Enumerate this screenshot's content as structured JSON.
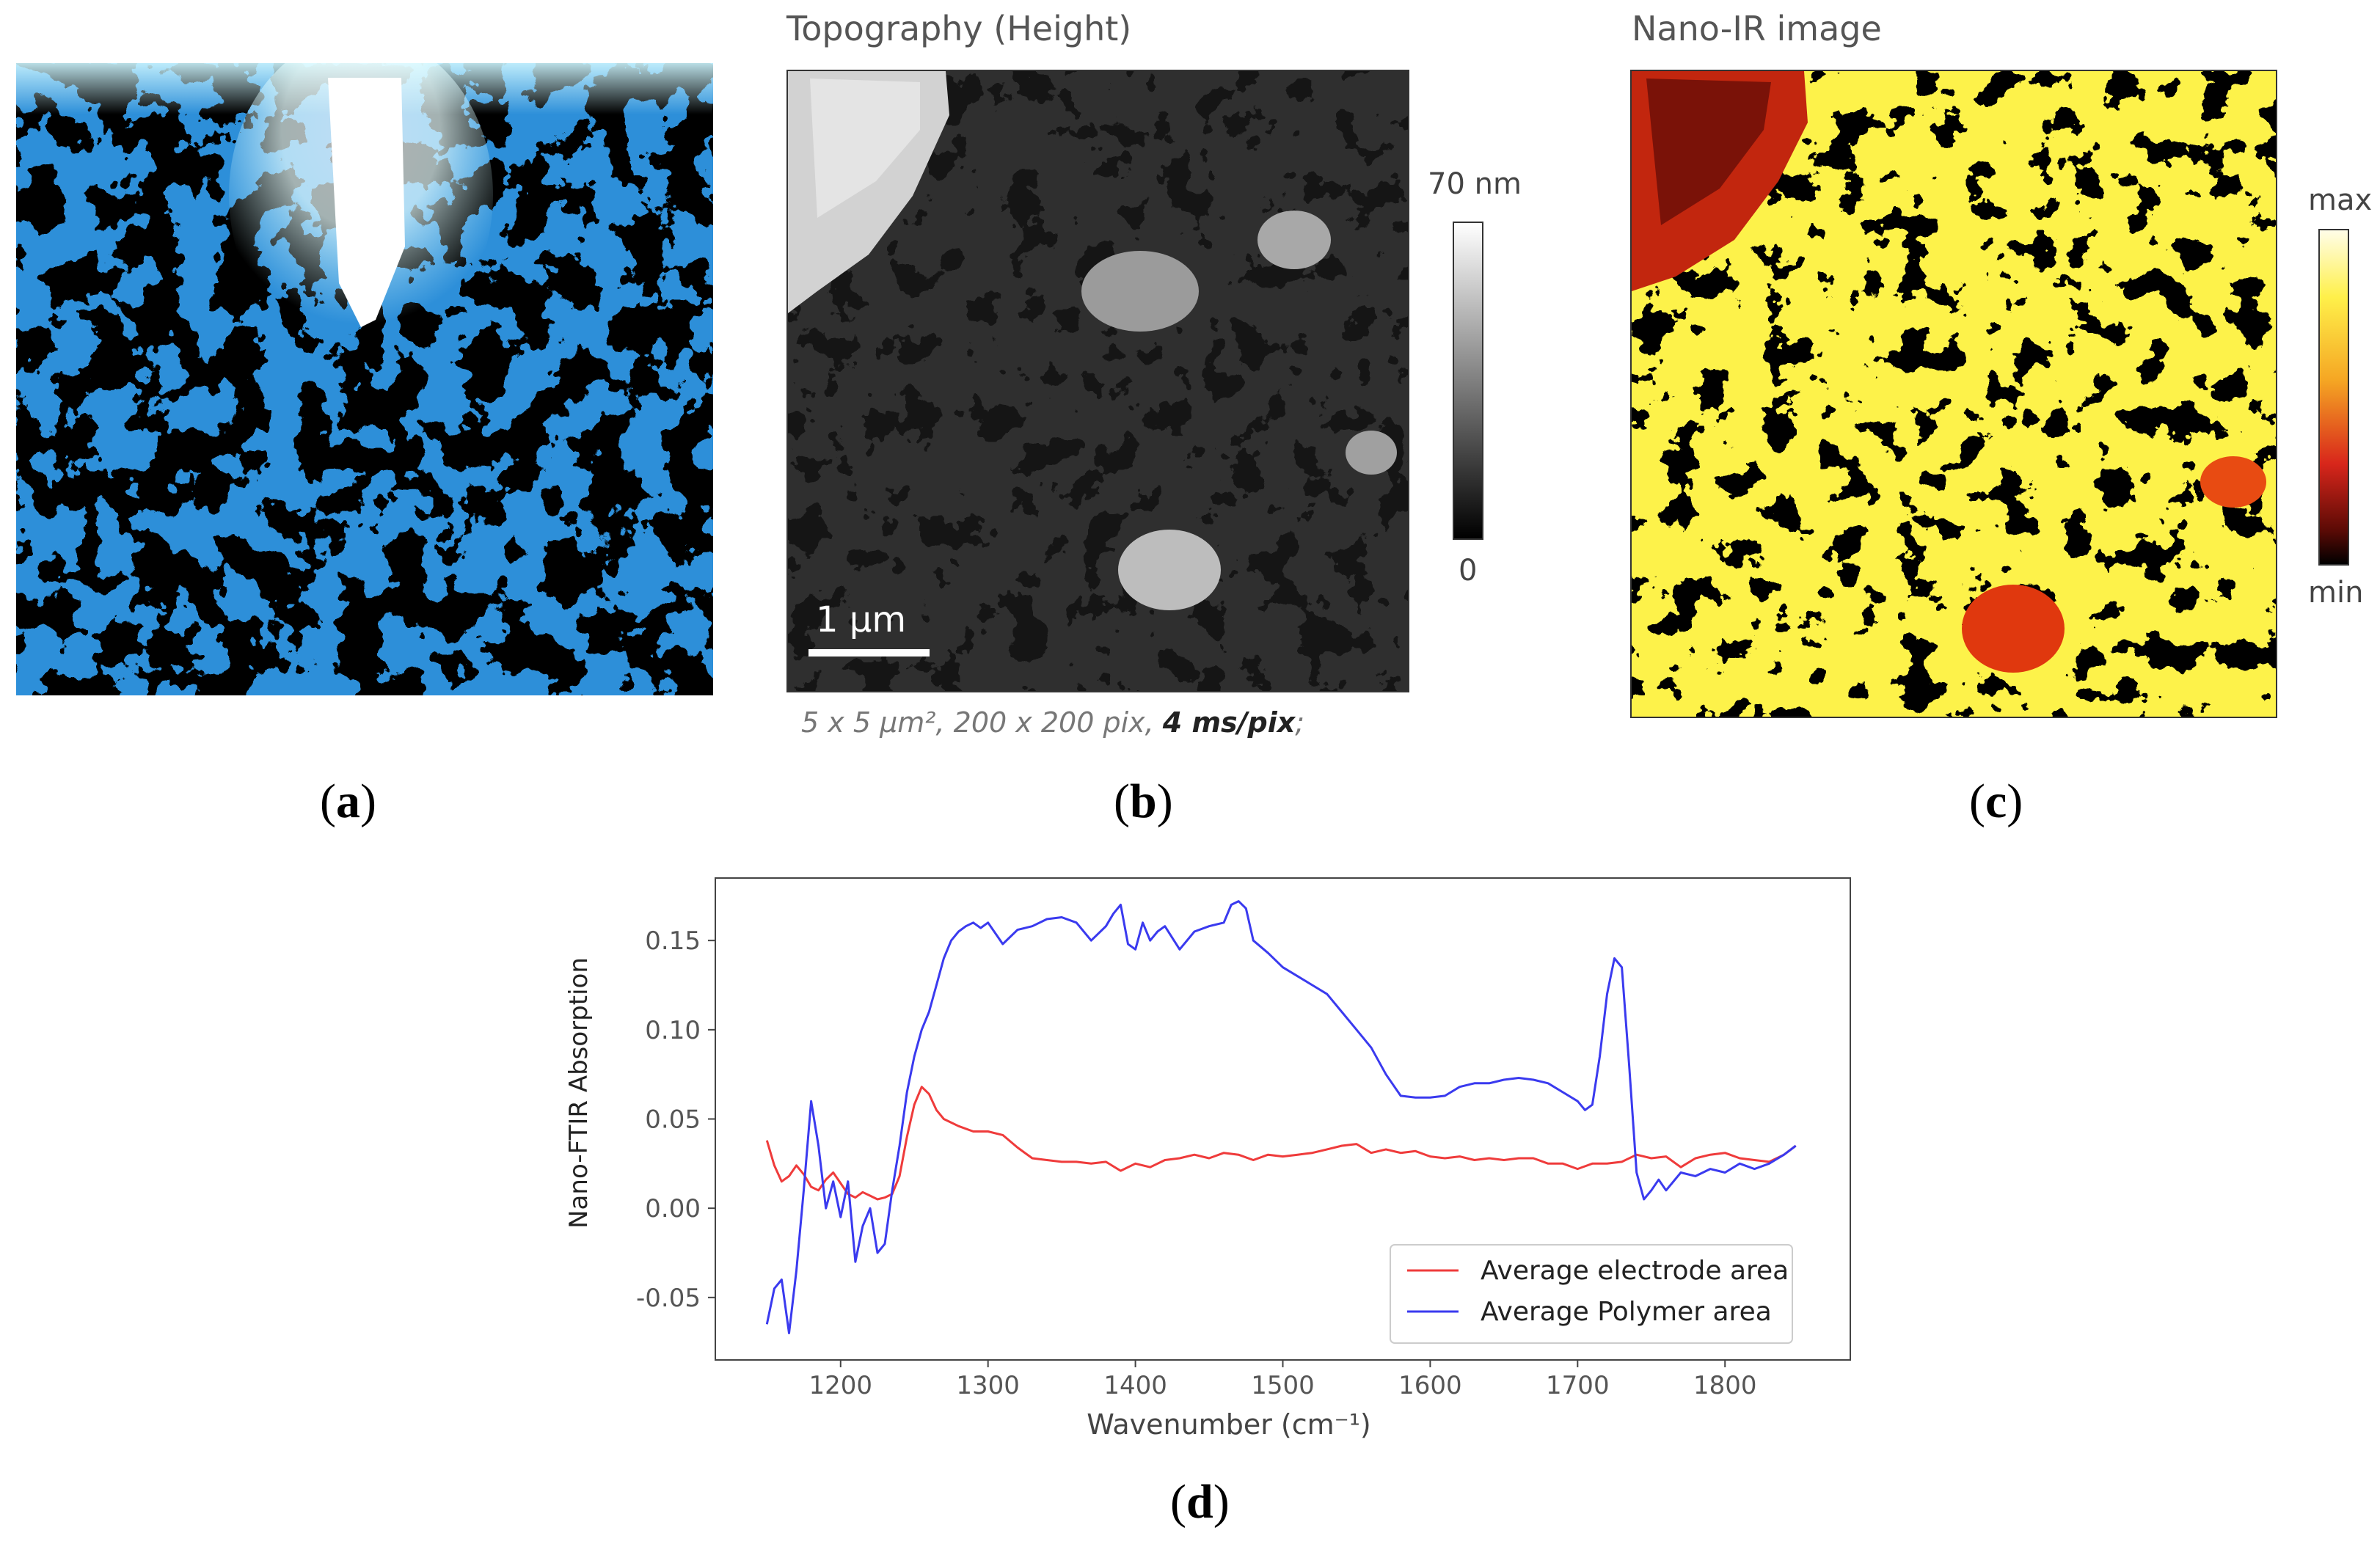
{
  "panel_a": {
    "caption_letter": "a"
  },
  "panel_b": {
    "title": "Topography (Height)",
    "colorbar_max": "70 nm",
    "colorbar_min": "0",
    "scalebar": "1 µm",
    "info_prefix": "5 x 5 µm², 200 x 200 pix, ",
    "info_strong": "4 ms/pix",
    "info_suffix": ";",
    "caption_letter": "b"
  },
  "panel_c": {
    "title": "Nano-IR image",
    "colorbar_max": "max",
    "colorbar_min": "min",
    "caption_letter": "c"
  },
  "panel_d": {
    "caption_letter": "d"
  },
  "chart_data": {
    "type": "line",
    "title": "",
    "xlabel": "Wavenumber (cm⁻¹)",
    "ylabel": "Nano-FTIR Absorption",
    "xlim": [
      1115,
      1885
    ],
    "ylim": [
      -0.085,
      0.185
    ],
    "xticks": [
      1200,
      1300,
      1400,
      1500,
      1600,
      1700,
      1800
    ],
    "yticks": [
      -0.05,
      0.0,
      0.05,
      0.1,
      0.15
    ],
    "ytick_labels": [
      "-0.05",
      "0.00",
      "0.05",
      "0.10",
      "0.15"
    ],
    "grid": false,
    "legend_position": "lower-right",
    "series": [
      {
        "name": "Average electrode area",
        "color": "#ef3b3b",
        "x": [
          1150,
          1155,
          1160,
          1165,
          1170,
          1175,
          1180,
          1185,
          1190,
          1195,
          1200,
          1205,
          1210,
          1215,
          1220,
          1225,
          1230,
          1235,
          1240,
          1245,
          1250,
          1255,
          1260,
          1265,
          1270,
          1275,
          1280,
          1290,
          1300,
          1310,
          1320,
          1330,
          1340,
          1350,
          1360,
          1370,
          1380,
          1390,
          1400,
          1410,
          1420,
          1430,
          1440,
          1450,
          1460,
          1470,
          1480,
          1490,
          1500,
          1510,
          1520,
          1530,
          1540,
          1550,
          1560,
          1570,
          1580,
          1590,
          1600,
          1610,
          1620,
          1630,
          1640,
          1650,
          1660,
          1670,
          1680,
          1690,
          1700,
          1710,
          1720,
          1730,
          1740,
          1750,
          1760,
          1770,
          1780,
          1790,
          1800,
          1810,
          1820,
          1830,
          1840,
          1848
        ],
        "y": [
          0.038,
          0.024,
          0.015,
          0.018,
          0.024,
          0.019,
          0.012,
          0.01,
          0.016,
          0.02,
          0.014,
          0.008,
          0.006,
          0.009,
          0.007,
          0.005,
          0.006,
          0.008,
          0.018,
          0.04,
          0.058,
          0.068,
          0.064,
          0.055,
          0.05,
          0.048,
          0.046,
          0.043,
          0.043,
          0.041,
          0.034,
          0.028,
          0.027,
          0.026,
          0.026,
          0.025,
          0.026,
          0.021,
          0.025,
          0.023,
          0.027,
          0.028,
          0.03,
          0.028,
          0.031,
          0.03,
          0.027,
          0.03,
          0.029,
          0.03,
          0.031,
          0.033,
          0.035,
          0.036,
          0.031,
          0.033,
          0.031,
          0.032,
          0.029,
          0.028,
          0.029,
          0.027,
          0.028,
          0.027,
          0.028,
          0.028,
          0.025,
          0.025,
          0.022,
          0.025,
          0.025,
          0.026,
          0.03,
          0.028,
          0.029,
          0.023,
          0.028,
          0.03,
          0.031,
          0.028,
          0.027,
          0.026,
          0.03,
          0.035
        ]
      },
      {
        "name": "Average Polymer area",
        "color": "#3a3aef",
        "x": [
          1150,
          1155,
          1160,
          1165,
          1170,
          1175,
          1180,
          1185,
          1190,
          1195,
          1200,
          1205,
          1210,
          1215,
          1220,
          1225,
          1230,
          1235,
          1240,
          1245,
          1250,
          1255,
          1260,
          1265,
          1270,
          1275,
          1280,
          1285,
          1290,
          1295,
          1300,
          1310,
          1320,
          1330,
          1340,
          1350,
          1360,
          1370,
          1380,
          1385,
          1390,
          1395,
          1400,
          1405,
          1410,
          1415,
          1420,
          1430,
          1440,
          1450,
          1460,
          1465,
          1470,
          1475,
          1480,
          1490,
          1500,
          1510,
          1520,
          1530,
          1540,
          1550,
          1560,
          1570,
          1580,
          1590,
          1600,
          1610,
          1620,
          1630,
          1640,
          1650,
          1660,
          1670,
          1680,
          1690,
          1700,
          1705,
          1710,
          1715,
          1720,
          1725,
          1730,
          1735,
          1740,
          1745,
          1750,
          1755,
          1760,
          1770,
          1780,
          1790,
          1800,
          1810,
          1820,
          1830,
          1840,
          1848
        ],
        "y": [
          -0.065,
          -0.045,
          -0.04,
          -0.07,
          -0.035,
          0.01,
          0.06,
          0.035,
          0.0,
          0.015,
          -0.005,
          0.015,
          -0.03,
          -0.01,
          0.0,
          -0.025,
          -0.02,
          0.01,
          0.035,
          0.065,
          0.085,
          0.1,
          0.11,
          0.125,
          0.14,
          0.15,
          0.155,
          0.158,
          0.16,
          0.157,
          0.16,
          0.148,
          0.156,
          0.158,
          0.162,
          0.163,
          0.16,
          0.15,
          0.158,
          0.165,
          0.17,
          0.148,
          0.145,
          0.16,
          0.15,
          0.155,
          0.158,
          0.145,
          0.155,
          0.158,
          0.16,
          0.17,
          0.172,
          0.168,
          0.15,
          0.143,
          0.135,
          0.13,
          0.125,
          0.12,
          0.11,
          0.1,
          0.09,
          0.075,
          0.063,
          0.062,
          0.062,
          0.063,
          0.068,
          0.07,
          0.07,
          0.072,
          0.073,
          0.072,
          0.07,
          0.065,
          0.06,
          0.055,
          0.058,
          0.085,
          0.12,
          0.14,
          0.135,
          0.08,
          0.02,
          0.005,
          0.01,
          0.016,
          0.01,
          0.02,
          0.018,
          0.022,
          0.02,
          0.025,
          0.022,
          0.025,
          0.03,
          0.035
        ]
      }
    ]
  }
}
